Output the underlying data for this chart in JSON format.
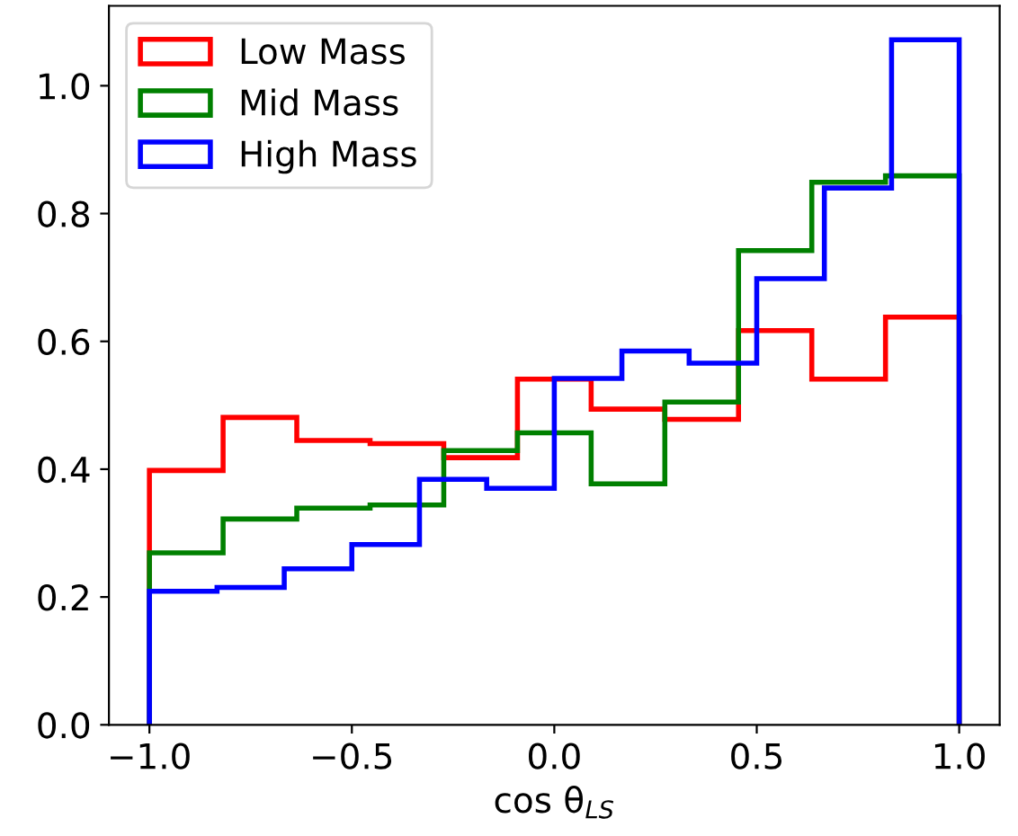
{
  "chart_data": {
    "type": "histogram",
    "xlabel": "cos θ$_{LS}$",
    "xlim": [
      -1.1,
      1.1
    ],
    "ylim": [
      0,
      1.125
    ],
    "xticks": [
      {
        "value": -1.0,
        "label": "−1.0"
      },
      {
        "value": -0.5,
        "label": "−0.5"
      },
      {
        "value": 0.0,
        "label": "0.0"
      },
      {
        "value": 0.5,
        "label": "0.5"
      },
      {
        "value": 1.0,
        "label": "1.0"
      }
    ],
    "yticks": [
      {
        "value": 0.0,
        "label": "0.0"
      },
      {
        "value": 0.2,
        "label": "0.2"
      },
      {
        "value": 0.4,
        "label": "0.4"
      },
      {
        "value": 0.6,
        "label": "0.6"
      },
      {
        "value": 0.8,
        "label": "0.8"
      },
      {
        "value": 1.0,
        "label": "1.0"
      }
    ],
    "legend": "top left",
    "grid": false,
    "bins": [
      -1.0,
      -0.818,
      -0.636,
      -0.455,
      -0.273,
      -0.091,
      0.091,
      0.273,
      0.455,
      0.636,
      0.818,
      1.0
    ],
    "series": [
      {
        "name": "Low Mass",
        "color": "#ff0000",
        "values": [
          0.398,
          0.481,
          0.445,
          0.44,
          0.418,
          0.541,
          0.494,
          0.478,
          0.617,
          0.541,
          0.638
        ]
      },
      {
        "name": "Mid Mass",
        "color": "#008000",
        "values": [
          0.269,
          0.322,
          0.339,
          0.344,
          0.429,
          0.457,
          0.377,
          0.505,
          0.742,
          0.849,
          0.859
        ]
      },
      {
        "name": "High Mass",
        "color": "#0000ff",
        "bins": [
          -1.0,
          -0.833,
          -0.667,
          -0.5,
          -0.333,
          -0.167,
          0.0,
          0.167,
          0.333,
          0.5,
          0.667,
          0.833,
          1.0
        ],
        "values": [
          0.209,
          0.215,
          0.244,
          0.282,
          0.384,
          0.37,
          0.542,
          0.585,
          0.566,
          0.698,
          0.84,
          1.072
        ]
      }
    ]
  }
}
